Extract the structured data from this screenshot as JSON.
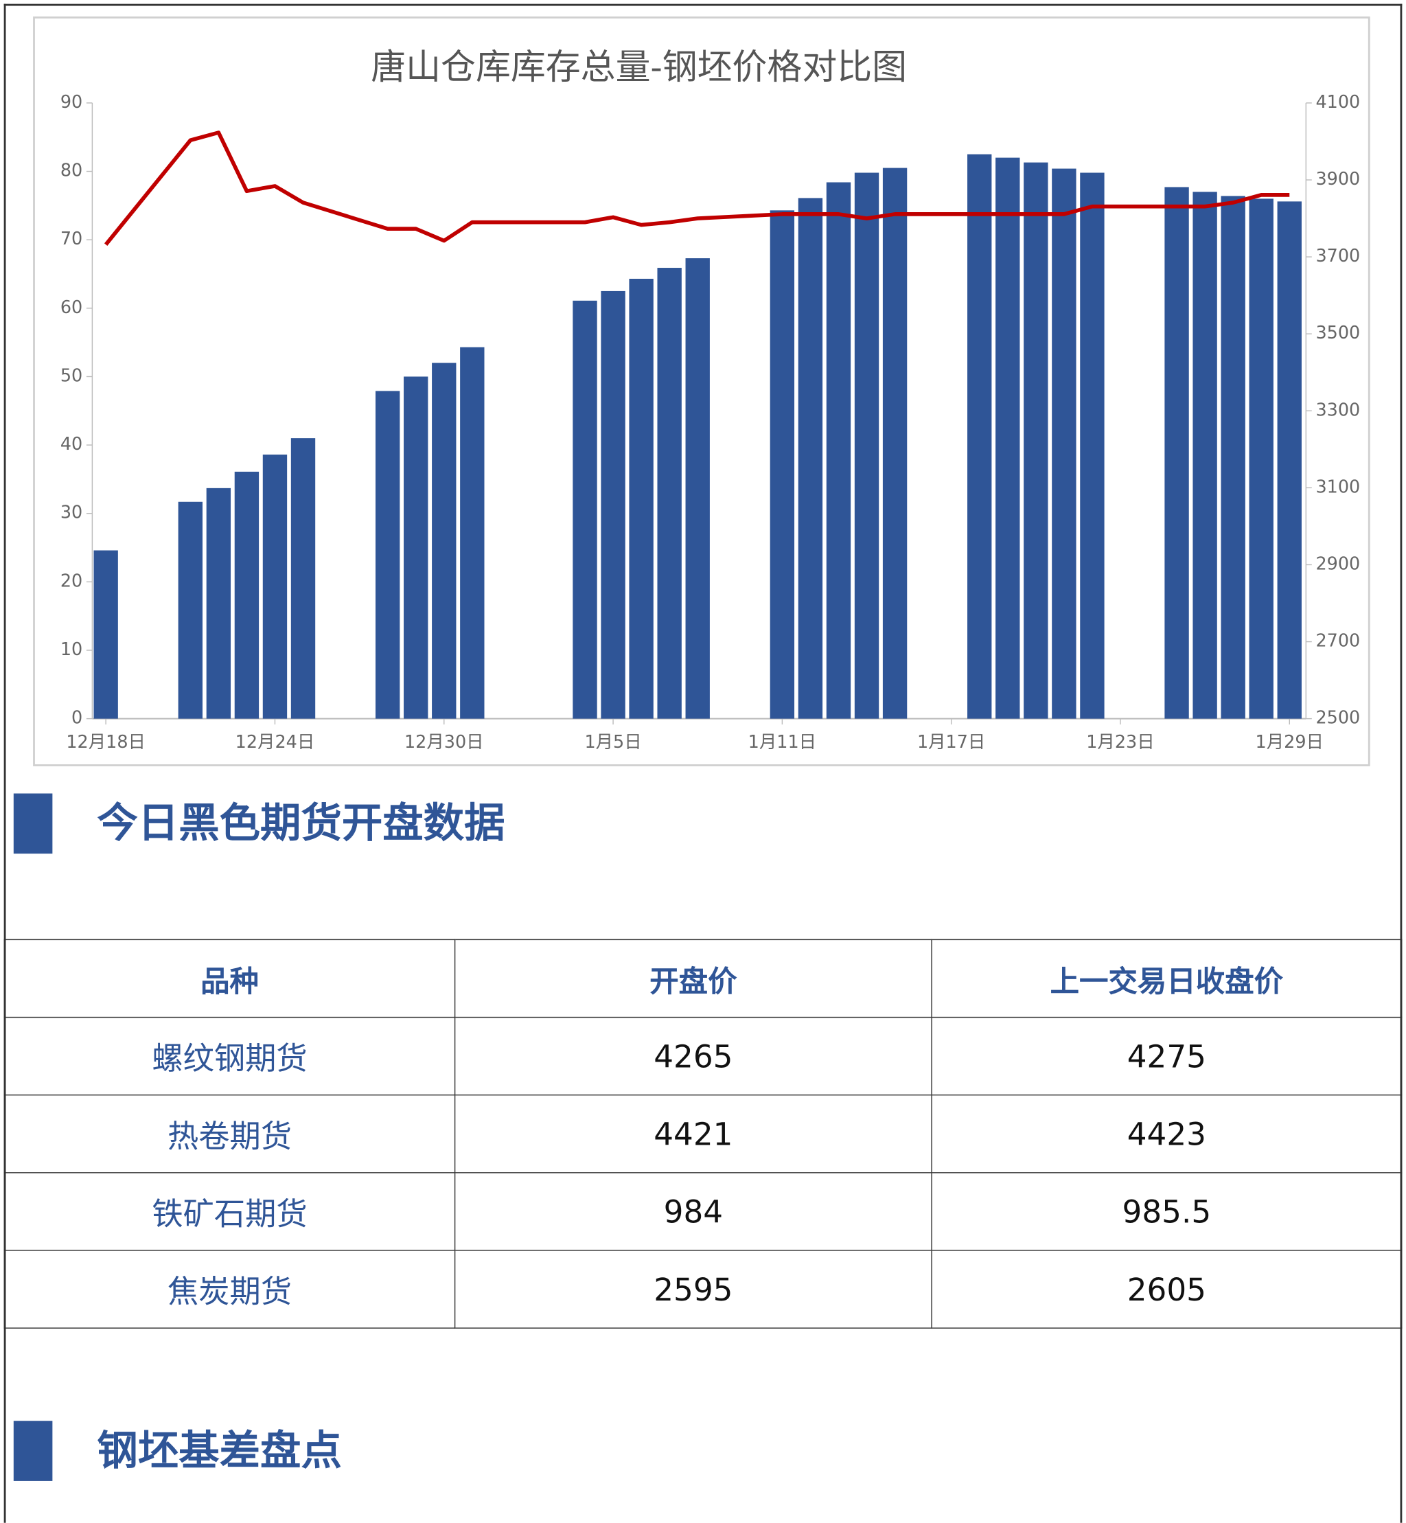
{
  "chart_data": {
    "type": "bar",
    "title": "唐山仓库库存总量-钢坯价格对比图",
    "x": [
      "12月18日",
      "12月21日",
      "12月22日",
      "12月23日",
      "12月24日",
      "12月25日",
      "12月28日",
      "12月29日",
      "12月30日",
      "12月31日",
      "1月4日",
      "1月5日",
      "1月6日",
      "1月7日",
      "1月8日",
      "1月11日",
      "1月12日",
      "1月13日",
      "1月14日",
      "1月15日",
      "1月18日",
      "1月19日",
      "1月20日",
      "1月21日",
      "1月22日",
      "1月25日",
      "1月26日",
      "1月27日",
      "1月28日",
      "1月29日"
    ],
    "series": [
      {
        "type": "bar",
        "color": "#2f5597",
        "values": [
          24.6,
          31.7,
          33.7,
          36.1,
          38.6,
          41.0,
          47.9,
          50.0,
          52.0,
          54.3,
          61.1,
          62.5,
          64.3,
          65.9,
          67.3,
          74.3,
          76.1,
          78.4,
          79.8,
          80.5,
          82.5,
          82.0,
          81.3,
          80.4,
          79.8,
          77.7,
          77.0,
          76.4,
          76.0,
          75.6
        ]
      },
      {
        "type": "line",
        "axis": "y2",
        "color": "#c00000",
        "values": [
          3732,
          4003,
          4023,
          3871,
          3884,
          3841,
          3773,
          3773,
          3742,
          3790,
          3790,
          3803,
          3783,
          3790,
          3800,
          3811,
          3811,
          3811,
          3800,
          3811,
          3811,
          3811,
          3811,
          3811,
          3831,
          3831,
          3831,
          3841,
          3861,
          3861
        ]
      }
    ],
    "xticks": [
      "12月18日",
      "12月24日",
      "12月30日",
      "1月5日",
      "1月11日",
      "1月17日",
      "1月23日",
      "1月29日"
    ],
    "ylim": [
      0,
      90
    ],
    "yticks": [
      0,
      10,
      20,
      30,
      40,
      50,
      60,
      70,
      80,
      90
    ],
    "y2lim": [
      2500,
      4100
    ],
    "y2ticks": [
      2500,
      2700,
      2900,
      3100,
      3300,
      3500,
      3700,
      3900,
      4100
    ]
  },
  "sections": [
    {
      "title": "今日黑色期货开盘数据"
    },
    {
      "title": "钢坯基差盘点"
    }
  ],
  "table": {
    "header": [
      "品种",
      "开盘价",
      "上一交易日收盘价"
    ],
    "rows": [
      [
        "螺纹钢期货",
        4265,
        4275
      ],
      [
        "热卷期货",
        4421,
        4423
      ],
      [
        "铁矿石期货",
        984,
        985.5
      ],
      [
        "焦炭期货",
        2595,
        2605
      ]
    ]
  }
}
